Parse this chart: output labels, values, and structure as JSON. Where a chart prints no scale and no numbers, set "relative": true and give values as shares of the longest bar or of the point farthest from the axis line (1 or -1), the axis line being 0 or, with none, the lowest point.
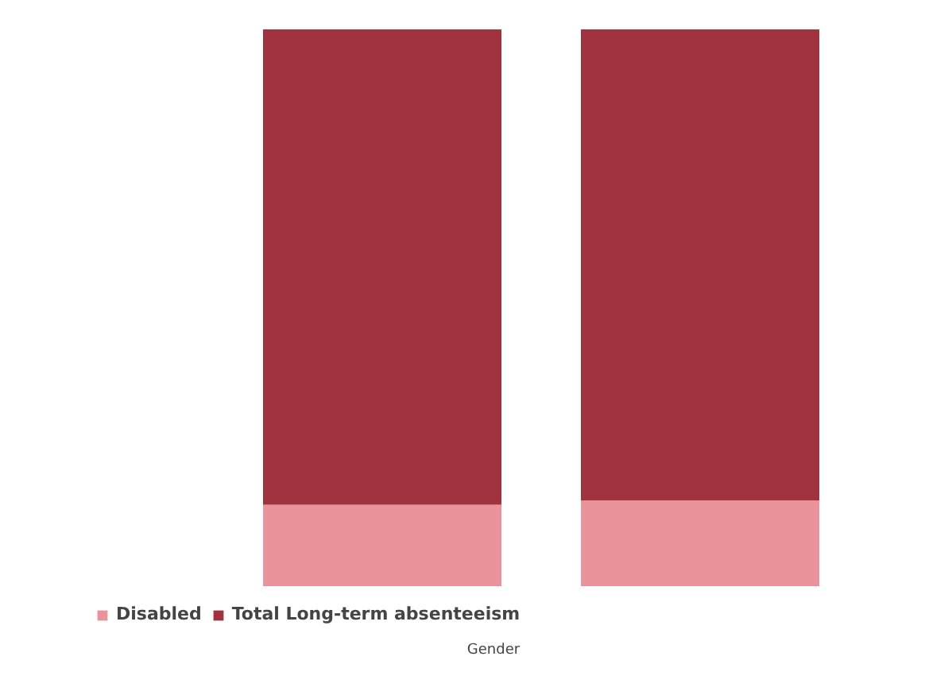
{
  "chart_data": {
    "type": "bar",
    "stacked": true,
    "relative": true,
    "xlabel": "Gender",
    "categories": [
      null,
      null
    ],
    "series": [
      {
        "name": "Disabled",
        "color": "#e8949a",
        "values": [
          0.146,
          0.154
        ]
      },
      {
        "name": "Total Long-term absenteeism",
        "color": "#a0333e",
        "values": [
          0.854,
          0.846
        ]
      }
    ],
    "legend": "bottom left"
  }
}
